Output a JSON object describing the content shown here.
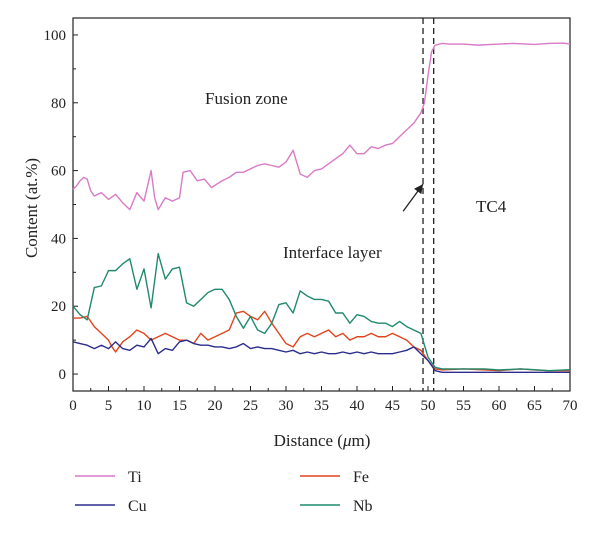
{
  "chart_data": {
    "type": "line",
    "xlabel_main": "Distance (",
    "xlabel_unit_italic": "μ",
    "xlabel_tail": "m)",
    "ylabel": "Content (at.%)",
    "xlim": [
      0,
      70
    ],
    "ylim": [
      -5,
      105
    ],
    "x_ticks": [
      0,
      5,
      10,
      15,
      20,
      25,
      30,
      35,
      40,
      45,
      50,
      55,
      60,
      65,
      70
    ],
    "y_ticks": [
      0,
      20,
      40,
      60,
      80,
      100
    ],
    "grid": false,
    "legend_position": "bottom",
    "annotations": {
      "fusion_zone": "Fusion zone",
      "tc4": "TC4",
      "interface_layer": "Interface layer"
    },
    "interface_boundaries": [
      49.3,
      50.8
    ],
    "arrow": {
      "from": [
        46.5,
        48.0
      ],
      "to": [
        49.3,
        56.0
      ]
    },
    "series": [
      {
        "name": "Ti",
        "color": "#d97ac8",
        "points": [
          [
            0,
            54.5
          ],
          [
            0.5,
            55.5
          ],
          [
            1,
            57
          ],
          [
            1.5,
            58
          ],
          [
            2,
            57.5
          ],
          [
            2.5,
            54
          ],
          [
            3,
            52.5
          ],
          [
            4,
            53.5
          ],
          [
            5,
            51.5
          ],
          [
            6,
            53
          ],
          [
            7,
            50.5
          ],
          [
            8,
            48.5
          ],
          [
            8.5,
            51
          ],
          [
            9,
            53.5
          ],
          [
            10,
            51
          ],
          [
            11,
            60
          ],
          [
            11.5,
            52
          ],
          [
            12,
            48.5
          ],
          [
            13,
            52
          ],
          [
            14,
            51
          ],
          [
            15,
            52
          ],
          [
            15.5,
            59.5
          ],
          [
            16.5,
            60
          ],
          [
            17.5,
            57
          ],
          [
            18.5,
            57.5
          ],
          [
            19.5,
            55
          ],
          [
            21,
            57
          ],
          [
            22,
            58
          ],
          [
            23,
            59.5
          ],
          [
            24,
            59.5
          ],
          [
            25,
            60.5
          ],
          [
            26,
            61.5
          ],
          [
            27,
            62
          ],
          [
            28,
            61.5
          ],
          [
            29,
            61
          ],
          [
            30,
            62.5
          ],
          [
            31,
            66
          ],
          [
            32,
            59
          ],
          [
            33,
            58
          ],
          [
            34,
            60
          ],
          [
            35,
            60.5
          ],
          [
            36,
            62
          ],
          [
            37,
            63.5
          ],
          [
            38,
            65
          ],
          [
            39,
            67.5
          ],
          [
            40,
            65
          ],
          [
            41,
            65
          ],
          [
            42,
            67
          ],
          [
            43,
            66.5
          ],
          [
            44,
            67.5
          ],
          [
            45,
            68
          ],
          [
            46,
            70
          ],
          [
            47,
            72
          ],
          [
            48,
            74
          ],
          [
            49,
            77
          ],
          [
            49.5,
            80
          ],
          [
            50,
            88
          ],
          [
            50.5,
            95
          ],
          [
            51,
            97
          ],
          [
            52,
            97.5
          ],
          [
            53,
            97.3
          ],
          [
            55,
            97.3
          ],
          [
            57,
            97
          ],
          [
            60,
            97.3
          ],
          [
            62,
            97.5
          ],
          [
            65,
            97.2
          ],
          [
            67,
            97.5
          ],
          [
            69,
            97.6
          ],
          [
            70,
            97.3
          ]
        ]
      },
      {
        "name": "Fe",
        "color": "#e0451c",
        "points": [
          [
            0,
            16.5
          ],
          [
            1,
            16.5
          ],
          [
            2,
            17
          ],
          [
            3,
            14
          ],
          [
            4,
            12
          ],
          [
            5,
            10
          ],
          [
            5.5,
            8
          ],
          [
            6,
            6.5
          ],
          [
            6.5,
            8
          ],
          [
            7,
            9.5
          ],
          [
            8,
            11
          ],
          [
            9,
            13
          ],
          [
            10,
            12
          ],
          [
            11,
            10
          ],
          [
            12,
            11
          ],
          [
            13,
            12
          ],
          [
            14,
            11
          ],
          [
            15,
            10
          ],
          [
            16,
            10
          ],
          [
            17,
            9
          ],
          [
            18,
            12
          ],
          [
            19,
            10
          ],
          [
            20,
            11
          ],
          [
            21,
            12
          ],
          [
            22,
            13
          ],
          [
            23,
            18
          ],
          [
            24,
            18.5
          ],
          [
            25,
            17
          ],
          [
            26,
            16
          ],
          [
            27,
            18.5
          ],
          [
            28,
            15
          ],
          [
            29,
            12
          ],
          [
            30,
            9
          ],
          [
            31,
            8
          ],
          [
            32,
            11
          ],
          [
            33,
            12
          ],
          [
            34,
            11
          ],
          [
            35,
            12
          ],
          [
            36,
            13
          ],
          [
            37,
            11
          ],
          [
            38,
            12
          ],
          [
            39,
            10
          ],
          [
            40,
            11
          ],
          [
            41,
            11
          ],
          [
            42,
            12
          ],
          [
            43,
            11
          ],
          [
            44,
            11
          ],
          [
            45,
            12
          ],
          [
            46,
            11
          ],
          [
            47,
            10
          ],
          [
            48,
            8
          ],
          [
            49,
            7
          ],
          [
            50,
            4
          ],
          [
            51,
            1.5
          ],
          [
            52,
            1.2
          ],
          [
            55,
            1.5
          ],
          [
            58,
            1.2
          ],
          [
            60,
            1
          ],
          [
            63,
            1.5
          ],
          [
            65,
            1.2
          ],
          [
            67,
            1
          ],
          [
            70,
            1
          ]
        ]
      },
      {
        "name": "Cu",
        "color": "#2b2d8e",
        "points": [
          [
            0,
            9.5
          ],
          [
            1,
            9
          ],
          [
            2,
            8.5
          ],
          [
            3,
            7.5
          ],
          [
            4,
            8.5
          ],
          [
            5,
            7.5
          ],
          [
            6,
            9.5
          ],
          [
            7,
            7.5
          ],
          [
            8,
            7
          ],
          [
            9,
            8.5
          ],
          [
            10,
            8
          ],
          [
            11,
            10.5
          ],
          [
            12,
            6
          ],
          [
            13,
            7.5
          ],
          [
            14,
            7
          ],
          [
            15,
            9.5
          ],
          [
            16,
            10
          ],
          [
            17,
            9
          ],
          [
            18,
            8.5
          ],
          [
            19,
            8.5
          ],
          [
            20,
            8
          ],
          [
            21,
            8
          ],
          [
            22,
            7.5
          ],
          [
            23,
            8
          ],
          [
            24,
            9
          ],
          [
            25,
            7.5
          ],
          [
            26,
            8
          ],
          [
            27,
            7.5
          ],
          [
            28,
            7.5
          ],
          [
            29,
            7
          ],
          [
            30,
            6.5
          ],
          [
            31,
            7
          ],
          [
            32,
            6
          ],
          [
            33,
            6.5
          ],
          [
            34,
            6
          ],
          [
            35,
            6.5
          ],
          [
            36,
            6
          ],
          [
            37,
            6
          ],
          [
            38,
            6.5
          ],
          [
            39,
            6
          ],
          [
            40,
            6.5
          ],
          [
            41,
            6
          ],
          [
            42,
            6.5
          ],
          [
            43,
            6
          ],
          [
            44,
            6
          ],
          [
            45,
            6
          ],
          [
            46,
            6.5
          ],
          [
            47,
            7
          ],
          [
            48,
            8
          ],
          [
            49,
            6
          ],
          [
            50,
            4
          ],
          [
            51,
            1
          ],
          [
            52,
            0.5
          ],
          [
            53,
            0.5
          ],
          [
            55,
            0.5
          ],
          [
            58,
            0.5
          ],
          [
            60,
            0.5
          ],
          [
            63,
            0.5
          ],
          [
            65,
            0.5
          ],
          [
            67,
            0.5
          ],
          [
            70,
            0.5
          ]
        ]
      },
      {
        "name": "Nb",
        "color": "#1f8a6e",
        "points": [
          [
            0,
            20
          ],
          [
            1,
            17.5
          ],
          [
            2,
            16
          ],
          [
            3,
            25.5
          ],
          [
            4,
            26
          ],
          [
            5,
            30.5
          ],
          [
            6,
            30.5
          ],
          [
            7,
            32.5
          ],
          [
            8,
            34
          ],
          [
            9,
            25
          ],
          [
            10,
            31
          ],
          [
            11,
            19.5
          ],
          [
            12,
            35.5
          ],
          [
            13,
            28
          ],
          [
            14,
            31
          ],
          [
            15,
            31.5
          ],
          [
            16,
            21
          ],
          [
            17,
            20
          ],
          [
            18,
            22
          ],
          [
            19,
            24
          ],
          [
            20,
            25
          ],
          [
            21,
            25
          ],
          [
            22,
            22
          ],
          [
            23,
            17
          ],
          [
            24,
            13.5
          ],
          [
            25,
            17
          ],
          [
            26,
            13
          ],
          [
            27,
            12
          ],
          [
            28,
            15
          ],
          [
            29,
            20.5
          ],
          [
            30,
            21
          ],
          [
            31,
            18
          ],
          [
            32,
            24.5
          ],
          [
            33,
            23
          ],
          [
            34,
            22
          ],
          [
            35,
            22
          ],
          [
            36,
            21.5
          ],
          [
            37,
            18
          ],
          [
            38,
            18
          ],
          [
            39,
            15
          ],
          [
            40,
            17.5
          ],
          [
            41,
            17
          ],
          [
            42,
            15.5
          ],
          [
            43,
            15
          ],
          [
            44,
            15
          ],
          [
            45,
            14
          ],
          [
            46,
            15.5
          ],
          [
            47,
            14
          ],
          [
            48,
            13
          ],
          [
            49,
            12
          ],
          [
            50,
            5
          ],
          [
            51,
            2
          ],
          [
            52,
            1.5
          ],
          [
            55,
            1.5
          ],
          [
            58,
            1.5
          ],
          [
            60,
            1.2
          ],
          [
            63,
            1.5
          ],
          [
            65,
            1.3
          ],
          [
            67,
            1
          ],
          [
            70,
            1.3
          ]
        ]
      }
    ]
  }
}
